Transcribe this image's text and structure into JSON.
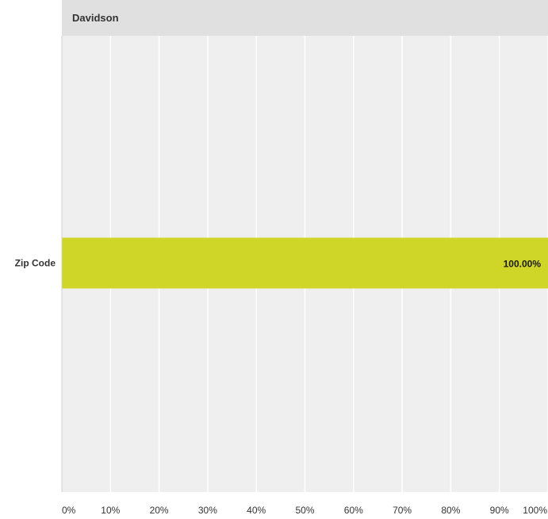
{
  "chart_data": {
    "type": "bar",
    "orientation": "horizontal",
    "title": "Davidson",
    "categories": [
      "Zip Code"
    ],
    "values": [
      100.0
    ],
    "data_labels": [
      "100.00%"
    ],
    "xlim": [
      0,
      100
    ],
    "x_ticks": [
      0,
      10,
      20,
      30,
      40,
      50,
      60,
      70,
      80,
      90,
      100
    ],
    "x_tick_labels": [
      "0%",
      "10%",
      "20%",
      "30%",
      "40%",
      "50%",
      "60%",
      "70%",
      "80%",
      "90%",
      "100%"
    ],
    "grid": true,
    "colors": {
      "bar": "#cfd628",
      "plot_background": "#efefef",
      "header_background": "#e0e0e0",
      "gridline": "#ffffff"
    }
  }
}
